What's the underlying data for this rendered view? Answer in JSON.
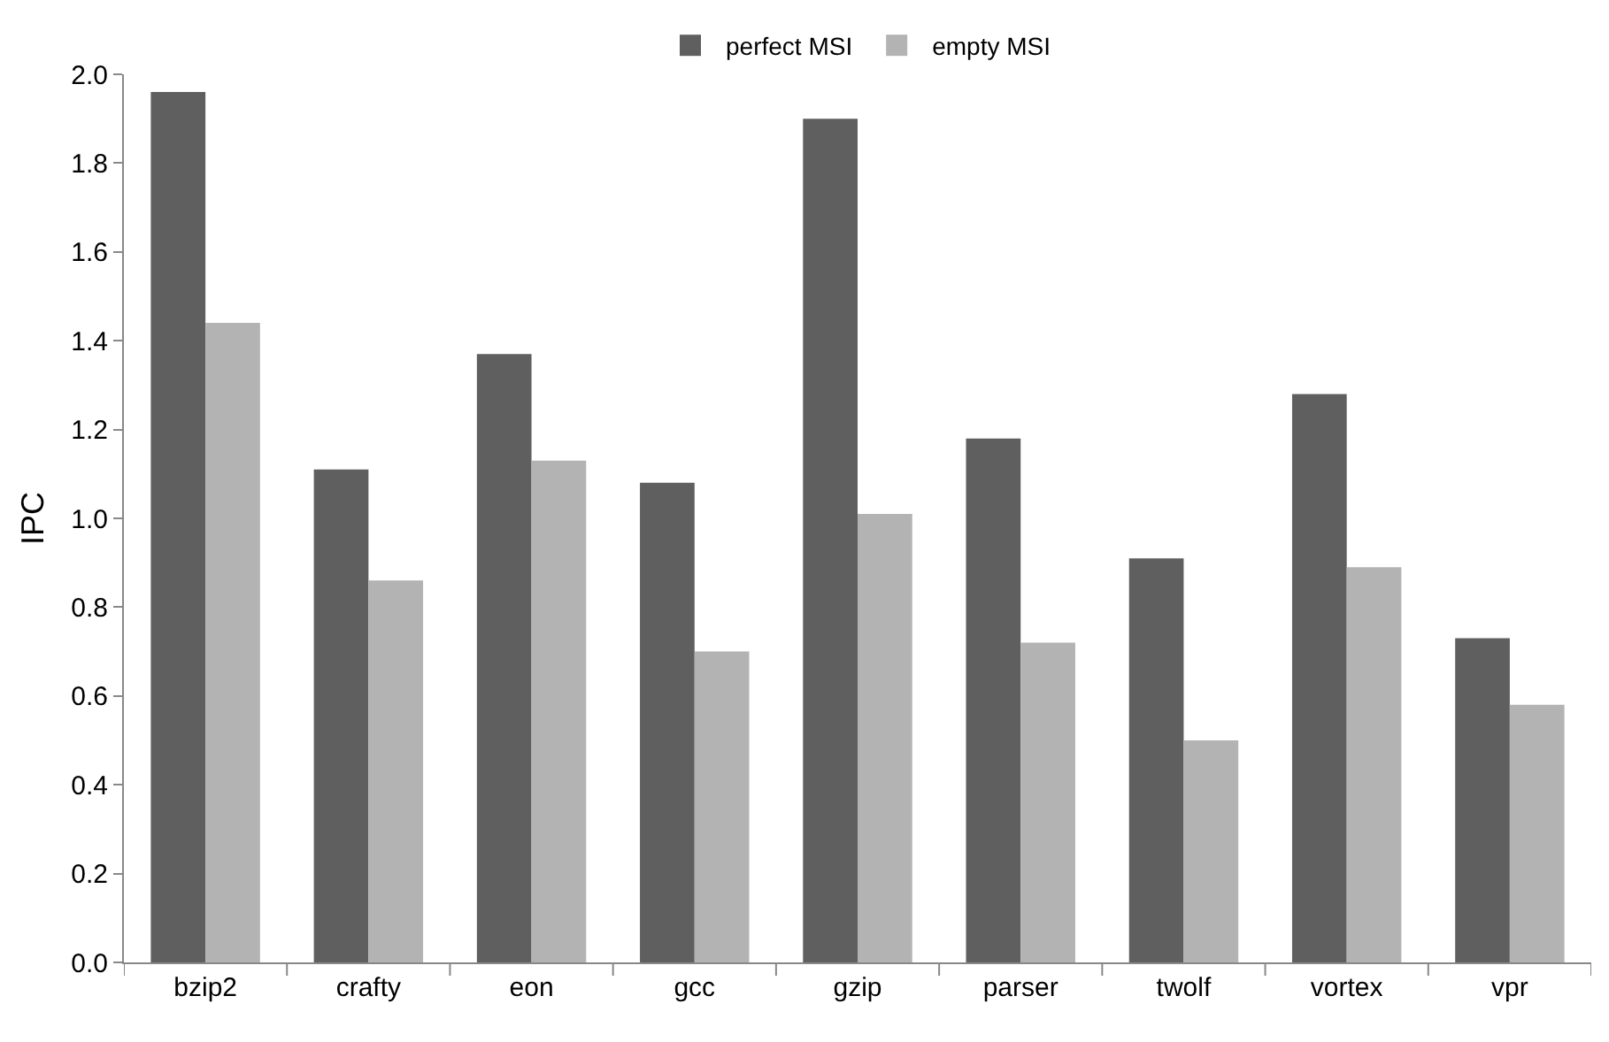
{
  "chart_data": {
    "type": "bar",
    "ylabel": "IPC",
    "categories": [
      "bzip2",
      "crafty",
      "eon",
      "gcc",
      "gzip",
      "parser",
      "twolf",
      "vortex",
      "vpr"
    ],
    "series": [
      {
        "name": "perfect MSI",
        "color": "#5f5f5f",
        "values": [
          1.96,
          1.11,
          1.37,
          1.08,
          1.9,
          1.18,
          0.91,
          1.28,
          0.73
        ]
      },
      {
        "name": "empty MSI",
        "color": "#b3b3b3",
        "values": [
          1.44,
          0.86,
          1.13,
          0.7,
          1.01,
          0.72,
          0.5,
          0.89,
          0.58
        ]
      }
    ],
    "ylim": [
      0,
      2.0
    ],
    "yticks": [
      {
        "value": 0,
        "label": "0.0"
      },
      {
        "value": 0.2,
        "label": "0.2"
      },
      {
        "value": 0.4,
        "label": "0.4"
      },
      {
        "value": 0.6,
        "label": "0.6"
      },
      {
        "value": 0.8,
        "label": "0.8"
      },
      {
        "value": 1.0,
        "label": "1.0"
      },
      {
        "value": 1.2,
        "label": "1.2"
      },
      {
        "value": 1.4,
        "label": "1.4"
      },
      {
        "value": 1.6,
        "label": "1.6"
      },
      {
        "value": 1.8,
        "label": "1.8"
      },
      {
        "value": 2.0,
        "label": "2.0"
      }
    ],
    "grid": false,
    "legend": "top"
  }
}
